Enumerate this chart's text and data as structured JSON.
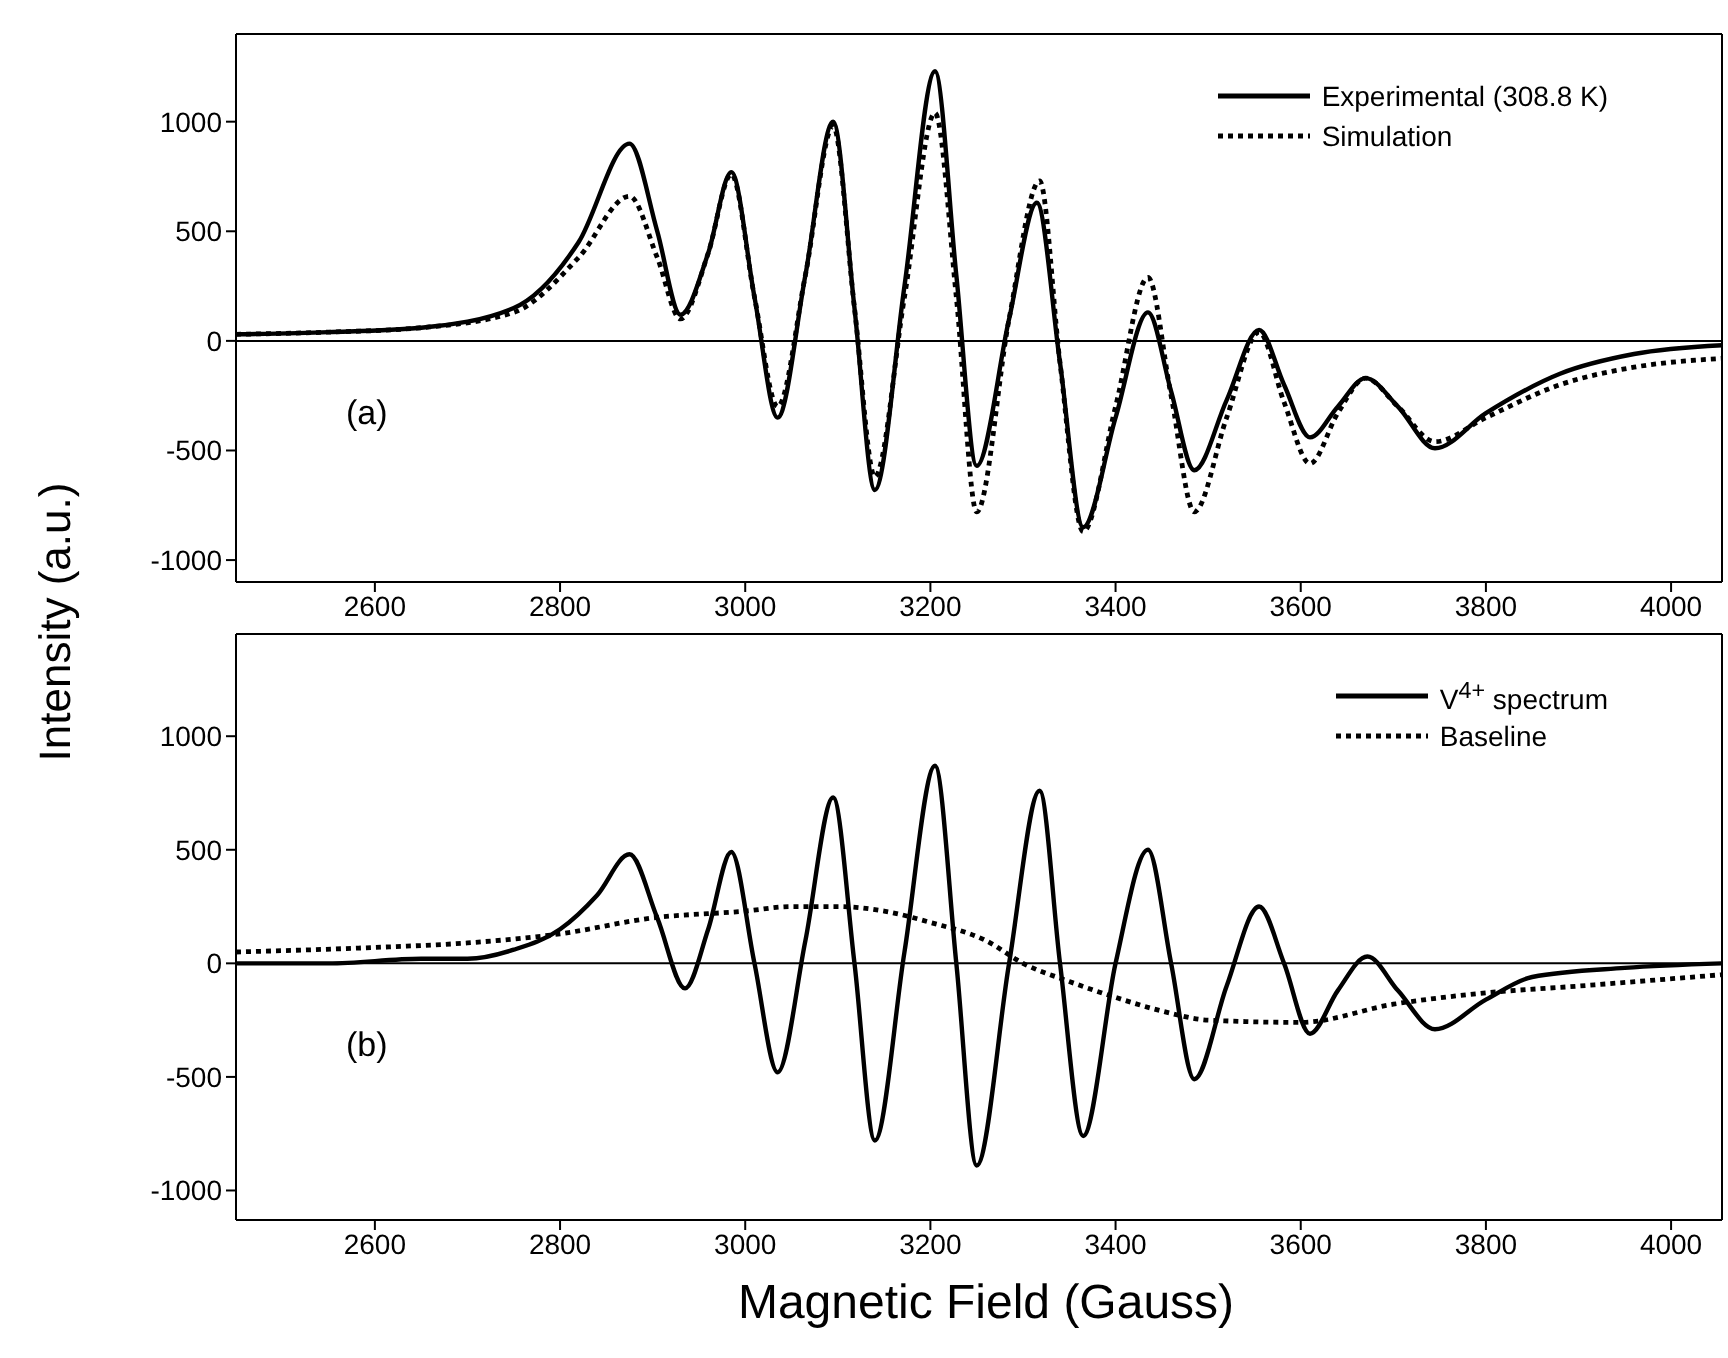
{
  "chart_data": [
    {
      "type": "line",
      "ylabel": "Intensity (a.u.)",
      "annotations": [
        "(a)"
      ],
      "xlim": [
        2450,
        4055
      ],
      "xticks": [
        2600,
        2800,
        3000,
        3200,
        3400,
        3600,
        3800,
        4000
      ],
      "ylim": [
        -1100,
        1400
      ],
      "yticks": [
        -1000,
        -500,
        0,
        500,
        1000
      ],
      "legend": "top right",
      "ref_lines": [
        {
          "axis": "y",
          "value": 0,
          "color": "#000000"
        }
      ],
      "series": [
        {
          "name": "Experimental (308.8 K)",
          "color": "#000000",
          "line_style": "solid",
          "x": [
            2450,
            2550,
            2650,
            2750,
            2820,
            2875,
            2905,
            2930,
            2960,
            2985,
            3010,
            3035,
            3065,
            3095,
            3118,
            3140,
            3172,
            3205,
            3228,
            3250,
            3285,
            3315,
            3340,
            3365,
            3400,
            3435,
            3460,
            3485,
            3520,
            3555,
            3582,
            3610,
            3640,
            3670,
            3705,
            3745,
            3800,
            3880,
            3960,
            4055
          ],
          "values": [
            30,
            40,
            60,
            150,
            450,
            900,
            500,
            120,
            400,
            770,
            200,
            -350,
            300,
            1000,
            150,
            -680,
            250,
            1230,
            300,
            -570,
            100,
            630,
            -100,
            -850,
            -350,
            130,
            -230,
            -590,
            -270,
            50,
            -200,
            -440,
            -300,
            -170,
            -300,
            -490,
            -330,
            -150,
            -60,
            -20
          ]
        },
        {
          "name": "Simulation",
          "color": "#000000",
          "line_style": "dotted",
          "x": [
            2450,
            2550,
            2650,
            2750,
            2820,
            2875,
            2905,
            2930,
            2960,
            2985,
            3010,
            3035,
            3065,
            3095,
            3118,
            3140,
            3172,
            3205,
            3228,
            3250,
            3285,
            3318,
            3340,
            3365,
            3400,
            3435,
            3460,
            3485,
            3520,
            3555,
            3582,
            3610,
            3640,
            3670,
            3705,
            3745,
            3800,
            3880,
            3960,
            4055
          ],
          "values": [
            30,
            40,
            60,
            130,
            380,
            660,
            380,
            100,
            400,
            760,
            200,
            -300,
            300,
            980,
            150,
            -620,
            200,
            1040,
            200,
            -780,
            100,
            730,
            -100,
            -870,
            -300,
            290,
            -250,
            -780,
            -350,
            40,
            -280,
            -560,
            -330,
            -170,
            -300,
            -460,
            -350,
            -200,
            -120,
            -80
          ]
        }
      ]
    },
    {
      "type": "line",
      "xlabel": "Magnetic Field (Gauss)",
      "annotations": [
        "(b)"
      ],
      "xlim": [
        2450,
        4055
      ],
      "xticks": [
        2600,
        2800,
        3000,
        3200,
        3400,
        3600,
        3800,
        4000
      ],
      "ylim": [
        -1130,
        1450
      ],
      "yticks": [
        -1000,
        -500,
        0,
        500,
        1000
      ],
      "legend": "top right",
      "ref_lines": [
        {
          "axis": "y",
          "value": 0,
          "color": "#000000"
        }
      ],
      "series": [
        {
          "name": "V$^{4+}$ spectrum",
          "color": "#000000",
          "line_style": "solid",
          "x": [
            2450,
            2550,
            2650,
            2700,
            2750,
            2800,
            2840,
            2875,
            2905,
            2935,
            2960,
            2985,
            3010,
            3035,
            3065,
            3095,
            3118,
            3140,
            3172,
            3205,
            3228,
            3250,
            3285,
            3318,
            3340,
            3365,
            3400,
            3435,
            3460,
            3485,
            3520,
            3555,
            3582,
            3610,
            3640,
            3672,
            3705,
            3745,
            3800,
            3850,
            3950,
            4055
          ],
          "values": [
            0,
            0,
            20,
            20,
            60,
            150,
            300,
            480,
            200,
            -110,
            150,
            490,
            0,
            -480,
            100,
            730,
            0,
            -780,
            50,
            870,
            0,
            -890,
            0,
            760,
            0,
            -760,
            0,
            500,
            0,
            -510,
            -100,
            250,
            0,
            -310,
            -120,
            30,
            -120,
            -290,
            -160,
            -60,
            -20,
            0
          ]
        },
        {
          "name": "Baseline",
          "color": "#000000",
          "line_style": "dotted",
          "x": [
            2450,
            2600,
            2700,
            2800,
            2900,
            3000,
            3050,
            3100,
            3150,
            3200,
            3260,
            3300,
            3350,
            3400,
            3450,
            3500,
            3600,
            3700,
            3800,
            3900,
            4055
          ],
          "values": [
            50,
            70,
            90,
            130,
            200,
            230,
            250,
            250,
            230,
            180,
            100,
            0,
            -80,
            -150,
            -210,
            -250,
            -260,
            -180,
            -130,
            -100,
            -50
          ]
        }
      ]
    }
  ]
}
